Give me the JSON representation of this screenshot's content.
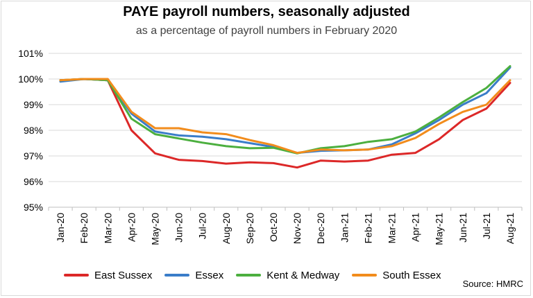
{
  "chart_data": {
    "type": "line",
    "title": "PAYE payroll numbers, seasonally adjusted",
    "subtitle": "as a percentage of payroll numbers in February 2020",
    "source": "Source: HMRC",
    "categories": [
      "Jan-20",
      "Feb-20",
      "Mar-20",
      "Apr-20",
      "May-20",
      "Jun-20",
      "Jul-20",
      "Aug-20",
      "Sep-20",
      "Oct-20",
      "Nov-20",
      "Dec-20",
      "Jan-21",
      "Feb-21",
      "Mar-21",
      "Apr-21",
      "May-21",
      "Jun-21",
      "Jul-21",
      "Aug-21"
    ],
    "ylim": [
      95,
      101
    ],
    "yticks": [
      "95%",
      "96%",
      "97%",
      "98%",
      "99%",
      "100%",
      "101%"
    ],
    "grid": true,
    "legend_position": "bottom",
    "series": [
      {
        "name": "East Sussex",
        "color": "#dc2828",
        "values": [
          99.95,
          100.0,
          99.95,
          98.0,
          97.1,
          96.85,
          96.8,
          96.7,
          96.75,
          96.72,
          96.55,
          96.82,
          96.78,
          96.82,
          97.05,
          97.12,
          97.65,
          98.4,
          98.85,
          99.85
        ]
      },
      {
        "name": "Essex",
        "color": "#3a7dc9",
        "values": [
          99.9,
          100.0,
          99.95,
          98.65,
          97.95,
          97.8,
          97.75,
          97.65,
          97.5,
          97.35,
          97.12,
          97.2,
          97.22,
          97.25,
          97.45,
          97.88,
          98.4,
          99.0,
          99.45,
          100.45
        ]
      },
      {
        "name": "Kent & Medway",
        "color": "#4caf3f",
        "values": [
          99.95,
          100.0,
          99.95,
          98.45,
          97.85,
          97.68,
          97.52,
          97.38,
          97.3,
          97.32,
          97.1,
          97.3,
          97.38,
          97.55,
          97.65,
          97.95,
          98.5,
          99.1,
          99.65,
          100.5
        ]
      },
      {
        "name": "South Essex",
        "color": "#f28c1c",
        "values": [
          99.95,
          100.0,
          100.0,
          98.72,
          98.08,
          98.08,
          97.92,
          97.85,
          97.62,
          97.42,
          97.12,
          97.25,
          97.22,
          97.25,
          97.38,
          97.7,
          98.25,
          98.72,
          99.0,
          99.95
        ]
      }
    ]
  }
}
